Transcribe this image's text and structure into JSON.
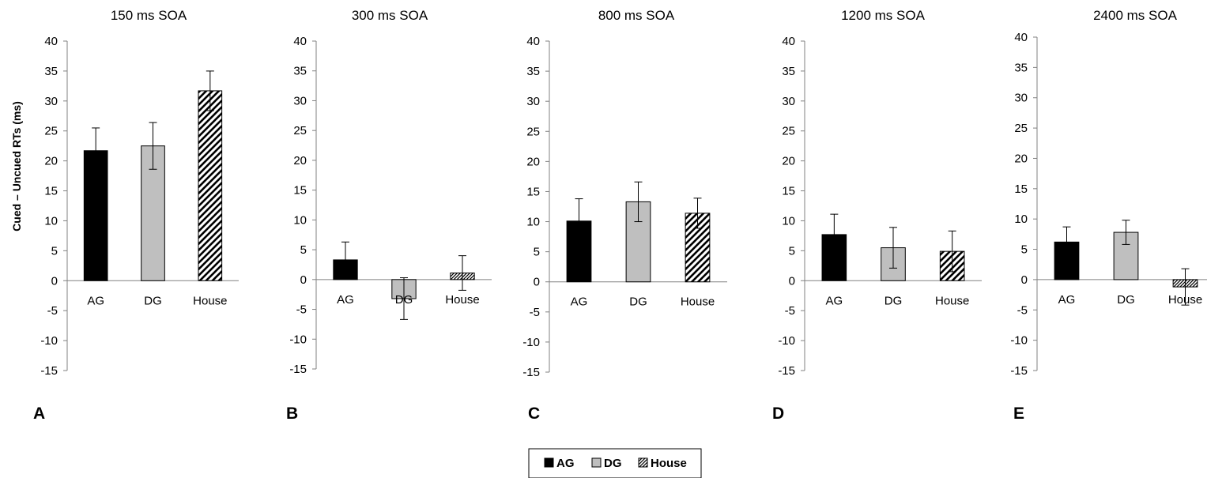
{
  "chart_data": [
    {
      "type": "bar",
      "panel_label": "A",
      "title": "150 ms SOA",
      "ylabel": "Cued – Uncued RTs (ms)",
      "categories": [
        "AG",
        "DG",
        "House"
      ],
      "values": [
        21.7,
        22.5,
        31.7
      ],
      "errors": [
        3.8,
        3.9,
        3.3
      ],
      "ylim": [
        -15,
        40
      ],
      "yticks": [
        40,
        35,
        30,
        25,
        20,
        15,
        10,
        5,
        0,
        -5,
        -10,
        -15
      ]
    },
    {
      "type": "bar",
      "panel_label": "B",
      "title": "300 ms SOA",
      "categories": [
        "AG",
        "DG",
        "House"
      ],
      "values": [
        3.3,
        -3.2,
        1.1
      ],
      "errors": [
        3.0,
        3.5,
        2.9
      ],
      "ylim": [
        -15,
        40
      ],
      "yticks": [
        40,
        35,
        30,
        25,
        20,
        15,
        10,
        5,
        0,
        -5,
        -10,
        -15
      ]
    },
    {
      "type": "bar",
      "panel_label": "C",
      "title": "800 ms SOA",
      "categories": [
        "AG",
        "DG",
        "House"
      ],
      "values": [
        10.1,
        13.3,
        11.4
      ],
      "errors": [
        3.7,
        3.3,
        2.5
      ],
      "ylim": [
        -15,
        40
      ],
      "yticks": [
        40,
        35,
        30,
        25,
        20,
        15,
        10,
        5,
        0,
        -5,
        -10,
        -15
      ]
    },
    {
      "type": "bar",
      "panel_label": "D",
      "title": "1200 ms SOA",
      "categories": [
        "AG",
        "DG",
        "House"
      ],
      "values": [
        7.7,
        5.5,
        4.9
      ],
      "errors": [
        3.4,
        3.4,
        3.4
      ],
      "ylim": [
        -15,
        40
      ],
      "yticks": [
        40,
        35,
        30,
        25,
        20,
        15,
        10,
        5,
        0,
        -5,
        -10,
        -15
      ]
    },
    {
      "type": "bar",
      "panel_label": "E",
      "title": "2400 ms SOA",
      "categories": [
        "AG",
        "DG",
        "House"
      ],
      "values": [
        6.2,
        7.8,
        -1.2
      ],
      "errors": [
        2.5,
        2.0,
        3.0
      ],
      "ylim": [
        -15,
        40
      ],
      "yticks": [
        40,
        35,
        30,
        25,
        20,
        15,
        10,
        5,
        0,
        -5,
        -10,
        -15
      ]
    }
  ],
  "legend": {
    "placement": "bottom-center",
    "items": [
      {
        "label": "AG",
        "fill": "#000000"
      },
      {
        "label": "DG",
        "fill": "#bfbfbf"
      },
      {
        "label": "House",
        "fill": "hatch"
      }
    ]
  },
  "colors": {
    "AG": "#000000",
    "DG": "#bfbfbf",
    "House": "hatch-black-diagonal",
    "axis": "#808080"
  }
}
